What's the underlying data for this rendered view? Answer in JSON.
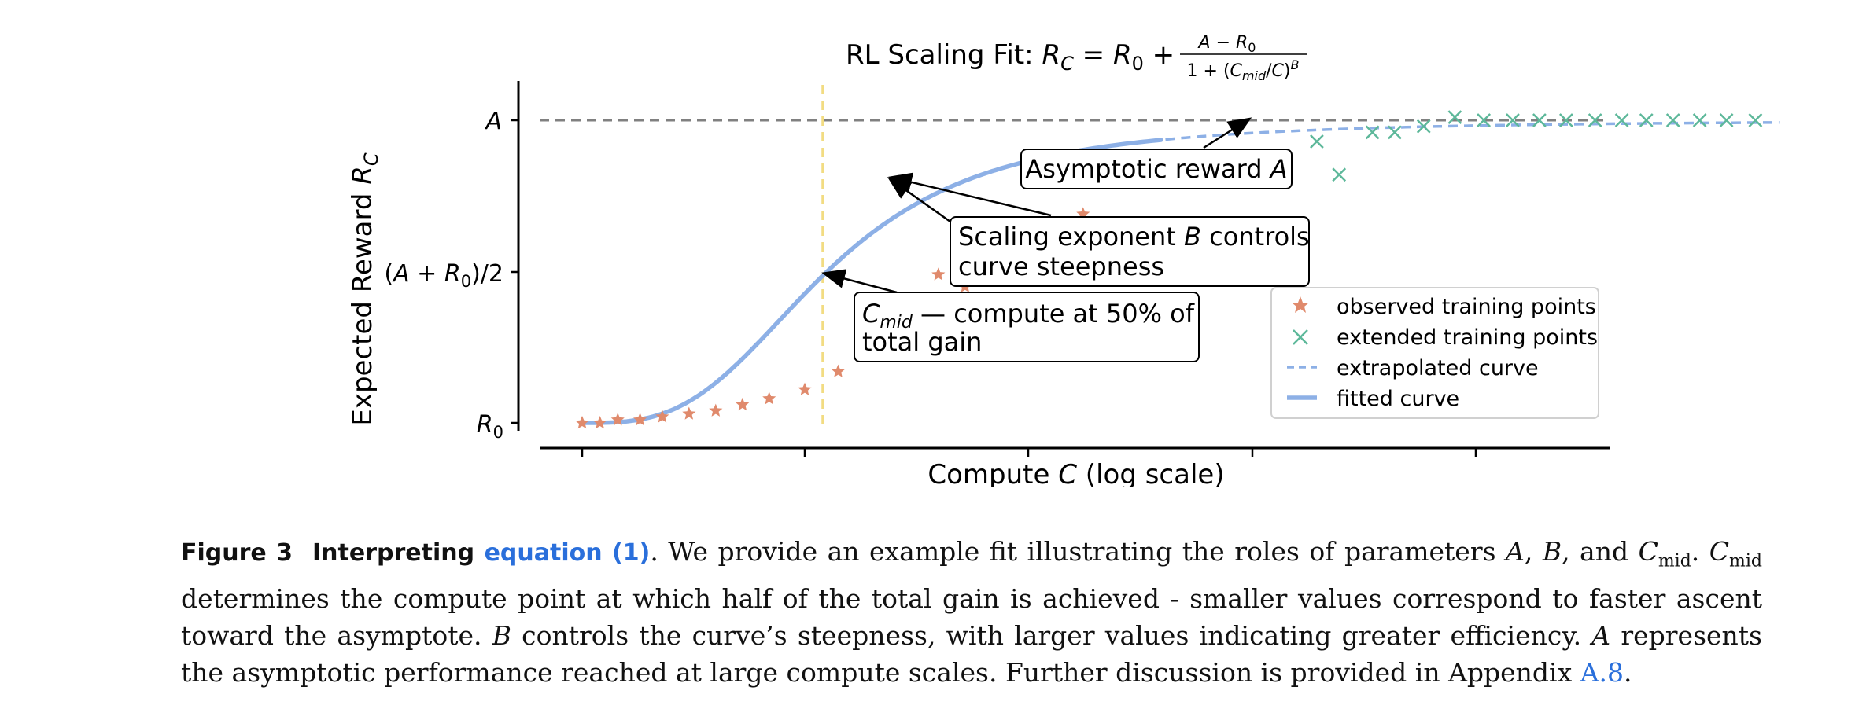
{
  "chart_data": {
    "type": "line",
    "title": "RL Scaling Fit",
    "xlabel": "Compute  C  (log scale)",
    "ylabel": "Expected Reward  R_C",
    "x_scale": "log",
    "yticks": [
      "A",
      "(A + R0)/2",
      "R0"
    ],
    "ylim": [
      0,
      1
    ],
    "reference_lines": {
      "asymptote_y": 1.0,
      "c_mid_x": 1.1,
      "asymptote_style": "dashed gray",
      "c_mid_style": "dashed yellow"
    },
    "series": [
      {
        "name": "observed training points",
        "marker": "star",
        "color": "#e08a6c",
        "x": [
          0.0,
          0.08,
          0.16,
          0.26,
          0.36,
          0.48,
          0.6,
          0.72,
          0.84,
          1.0,
          1.15,
          1.28,
          1.38,
          1.45,
          1.55,
          1.6,
          1.72,
          1.85,
          2.0,
          2.1,
          2.25,
          2.4,
          2.55
        ],
        "y": [
          0.0,
          0.0,
          0.01,
          0.01,
          0.02,
          0.03,
          0.04,
          0.06,
          0.08,
          0.11,
          0.17,
          0.24,
          0.31,
          0.37,
          0.4,
          0.49,
          0.45,
          0.55,
          0.52,
          0.66,
          0.69,
          0.8,
          0.82
        ]
      },
      {
        "name": "extended training points",
        "marker": "x",
        "color": "#5db89a",
        "x": [
          3.15,
          3.3,
          3.4,
          3.55,
          3.65,
          3.78,
          3.92,
          4.05,
          4.18,
          4.3,
          4.42,
          4.55,
          4.67,
          4.78,
          4.9,
          5.02,
          5.14,
          5.27
        ],
        "y": [
          0.88,
          0.93,
          0.82,
          0.96,
          0.96,
          0.98,
          1.01,
          1.0,
          1.0,
          1.0,
          1.0,
          1.0,
          1.0,
          1.0,
          1.0,
          1.0,
          1.0,
          1.0
        ]
      },
      {
        "name": "extrapolated curve",
        "style": "dashed",
        "color": "#8db0e6"
      },
      {
        "name": "fitted curve",
        "style": "solid",
        "color": "#8db0e6"
      }
    ],
    "fit": {
      "A": 1.0,
      "R0": 0.0,
      "C_mid": 1.1,
      "B": 3.1
    },
    "annotations": [
      "Asymptotic reward A",
      "Scaling exponent B controls\n curve steepness",
      "C_mid — compute at 50% of\ntotal gain"
    ],
    "legend_position": "center-right",
    "grid": false
  },
  "caption": {
    "figure_label": "Figure 3",
    "heading": "Interpreting",
    "eq_link": "equation (1)",
    "body1": ". We provide an example fit illustrating the roles of parameters ",
    "sym_A": "A",
    "sep1": ", ",
    "sym_B": "B",
    "sep2": ", and ",
    "sym_C": "C",
    "sub_mid": "mid",
    "sep3": ". ",
    "body2": " determines the compute point at which half of the total gain is achieved - smaller values correspond to faster ascent toward the asymptote. ",
    "body3": " controls the curve’s steepness, with larger values indicating greater efficiency. ",
    "body4": " represents the asymptotic performance reached at large compute scales. Further discussion is provided in Appendix ",
    "appendix_link": "A.8",
    "end": "."
  },
  "colors": {
    "link": "#2a6fdb",
    "fitted": "#8db0e6",
    "observed": "#e08a6c",
    "extended": "#5db89a",
    "asymptote": "#808080",
    "cmid": "#f2dc82"
  }
}
